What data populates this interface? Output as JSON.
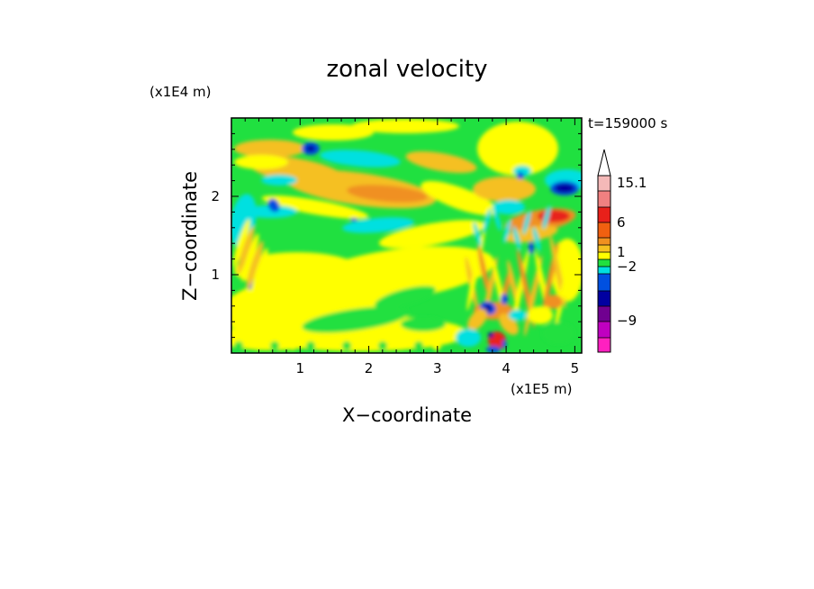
{
  "chart_data": {
    "type": "heatmap",
    "title": "zonal velocity",
    "xlabel": "X−coordinate",
    "ylabel": "Z−coordinate",
    "x_unit": "(x1E5 m)",
    "y_unit": "(x1E4 m)",
    "time_label": "t=159000 s",
    "x_range": [
      0.0,
      5.1
    ],
    "y_range": [
      0.0,
      3.0
    ],
    "x_ticks": [
      "1",
      "2",
      "3",
      "4",
      "5"
    ],
    "x_tick_values": [
      1,
      2,
      3,
      4,
      5
    ],
    "y_ticks": [
      "1",
      "2"
    ],
    "y_tick_values": [
      1,
      2
    ],
    "colorbar": {
      "labels": [
        "15.1",
        "6",
        "1",
        "−2",
        "−9"
      ],
      "label_values": [
        15.1,
        6,
        1,
        -2,
        -9
      ],
      "extend_top": true,
      "colors_top_to_bottom": [
        "#f4b9b8",
        "#f08080",
        "#e8201a",
        "#f06010",
        "#f09020",
        "#f5c020",
        "#ffff00",
        "#20e040",
        "#00e0e0",
        "#0050e0",
        "#0000a0",
        "#700090",
        "#c000c0",
        "#ff20c0"
      ]
    },
    "field_colors": {
      "strong_negative": "#0000a0",
      "negative": "#0050e0",
      "weak_negative": "#00e0e0",
      "near_zero": "#20e040",
      "weak_positive": "#ffff00",
      "positive": "#f5c020",
      "strong_positive": "#f09020",
      "very_strong_positive": "#e8201a"
    }
  }
}
